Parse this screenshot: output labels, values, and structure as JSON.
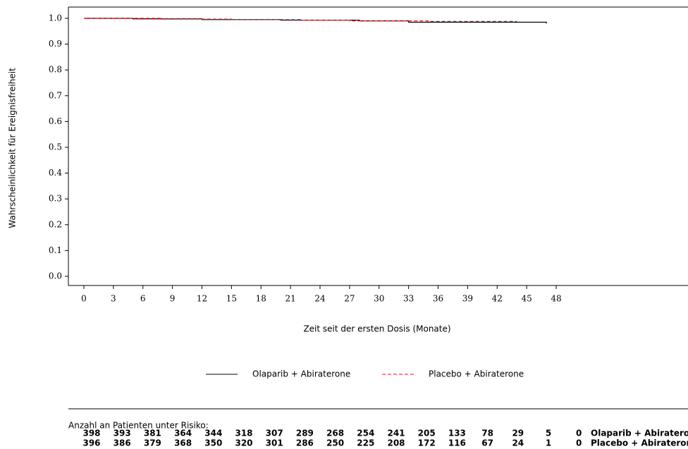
{
  "chart_data": {
    "type": "line",
    "ylabel": "Wahrscheinlichkeit für Ereignisfreiheit",
    "xlabel": "Zeit seit der ersten Dosis (Monate)",
    "xlim": [
      0,
      48
    ],
    "xticks": [
      0,
      3,
      6,
      9,
      12,
      15,
      18,
      21,
      24,
      27,
      30,
      33,
      36,
      39,
      42,
      45,
      48
    ],
    "ylim": [
      0,
      1
    ],
    "yticks": [
      {
        "value": 0,
        "label": "0.0"
      },
      0.1,
      0.2,
      0.3,
      0.4,
      0.5,
      0.6,
      0.7,
      0.8,
      0.9,
      {
        "value": 1,
        "label": "1.0"
      }
    ],
    "series": [
      {
        "name": "Olaparib + Abiraterone",
        "color": "#000000",
        "dash": "solid",
        "x": [
          0,
          5,
          12,
          20,
          28,
          33,
          47
        ],
        "values": [
          1.0,
          0.998,
          0.995,
          0.993,
          0.99,
          0.985,
          0.98
        ]
      },
      {
        "name": "Placebo + Abiraterone",
        "color": "#e8141e",
        "dash": "dashed",
        "x": [
          0,
          8,
          15,
          22,
          27,
          35,
          44
        ],
        "values": [
          1.0,
          0.997,
          0.995,
          0.993,
          0.99,
          0.988,
          0.988
        ]
      }
    ],
    "risk_table": {
      "title": "Anzahl an Patienten unter Risiko:",
      "rows": [
        {
          "name": "Olaparib + Abiraterone",
          "values": [
            398,
            393,
            381,
            364,
            344,
            318,
            307,
            289,
            268,
            254,
            241,
            205,
            133,
            78,
            29,
            5,
            0
          ]
        },
        {
          "name": "Placebo + Abiraterone",
          "values": [
            396,
            386,
            379,
            368,
            350,
            320,
            301,
            286,
            250,
            225,
            208,
            172,
            116,
            67,
            24,
            1,
            0
          ]
        }
      ]
    }
  }
}
